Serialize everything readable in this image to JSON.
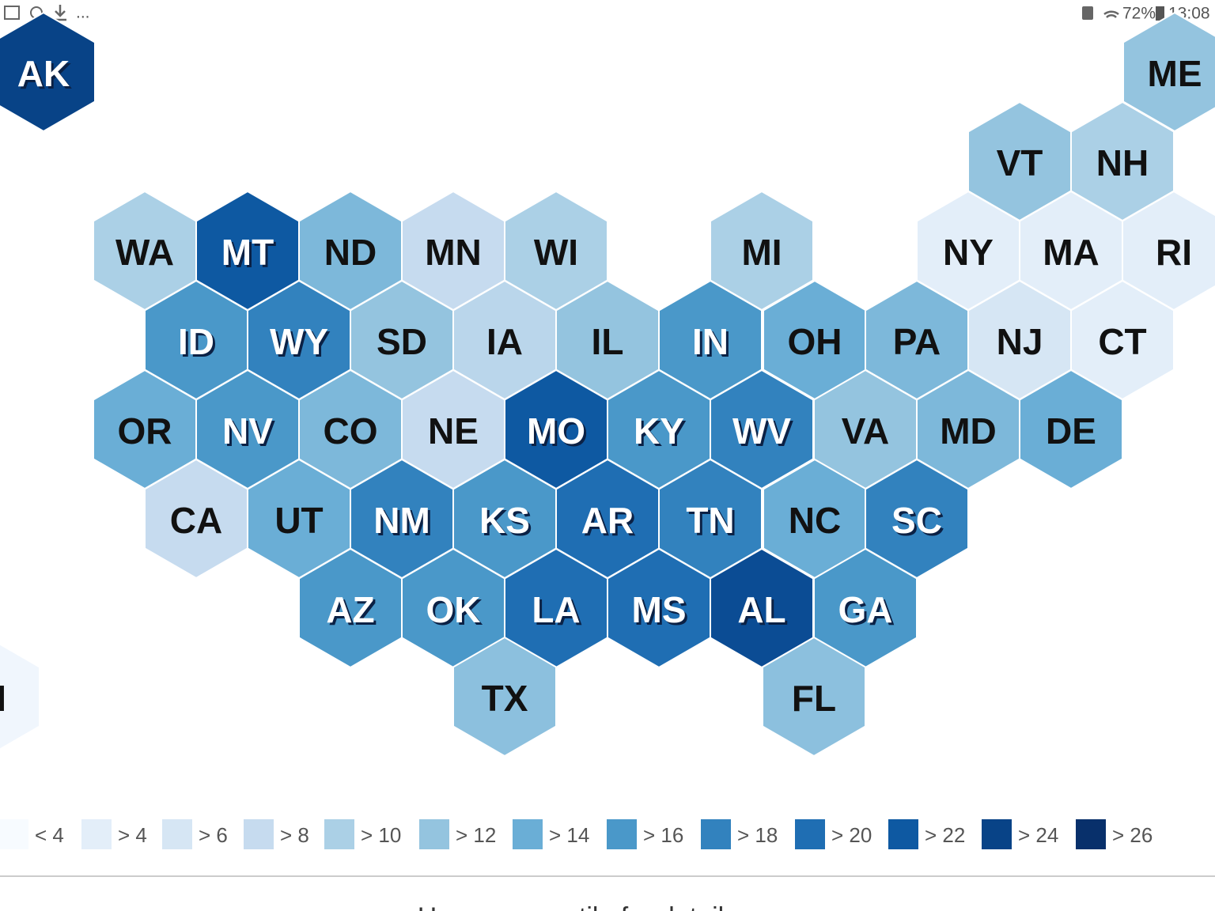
{
  "status_bar": {
    "more": "...",
    "battery": "72%",
    "time": "13:08"
  },
  "states": [
    {
      "label": "AK",
      "color": "#084387"
    },
    {
      "label": "ME",
      "color": "#94c4df"
    },
    {
      "label": "VT",
      "color": "#94c4df"
    },
    {
      "label": "NH",
      "color": "#abd0e6"
    },
    {
      "label": "WA",
      "color": "#abd0e6"
    },
    {
      "label": "MT",
      "color": "#0e59a2"
    },
    {
      "label": "ND",
      "color": "#7db8da"
    },
    {
      "label": "MN",
      "color": "#c6dbef"
    },
    {
      "label": "WI",
      "color": "#abd0e6"
    },
    {
      "label": "MI",
      "color": "#abd0e6"
    },
    {
      "label": "NY",
      "color": "#e3eef9"
    },
    {
      "label": "MA",
      "color": "#e3eef9"
    },
    {
      "label": "RI",
      "color": "#e3eef9"
    },
    {
      "label": "ID",
      "color": "#4a98c9"
    },
    {
      "label": "WY",
      "color": "#3282be"
    },
    {
      "label": "SD",
      "color": "#94c4df"
    },
    {
      "label": "IA",
      "color": "#bad6eb"
    },
    {
      "label": "IL",
      "color": "#94c4df"
    },
    {
      "label": "IN",
      "color": "#4a98c9"
    },
    {
      "label": "OH",
      "color": "#6aaed6"
    },
    {
      "label": "PA",
      "color": "#7db8da"
    },
    {
      "label": "NJ",
      "color": "#d6e6f4"
    },
    {
      "label": "CT",
      "color": "#e3eef9"
    },
    {
      "label": "OR",
      "color": "#6aaed6"
    },
    {
      "label": "NV",
      "color": "#4a98c9"
    },
    {
      "label": "CO",
      "color": "#7db8da"
    },
    {
      "label": "NE",
      "color": "#c6dbef"
    },
    {
      "label": "MO",
      "color": "#0e59a2"
    },
    {
      "label": "KY",
      "color": "#4a98c9"
    },
    {
      "label": "WV",
      "color": "#3282be"
    },
    {
      "label": "VA",
      "color": "#94c4df"
    },
    {
      "label": "MD",
      "color": "#7db8da"
    },
    {
      "label": "DE",
      "color": "#6aaed6"
    },
    {
      "label": "CA",
      "color": "#c6dbef"
    },
    {
      "label": "UT",
      "color": "#6aaed6"
    },
    {
      "label": "NM",
      "color": "#3282be"
    },
    {
      "label": "KS",
      "color": "#4a98c9"
    },
    {
      "label": "AR",
      "color": "#1f6eb3"
    },
    {
      "label": "TN",
      "color": "#3282be"
    },
    {
      "label": "NC",
      "color": "#6aaed6"
    },
    {
      "label": "SC",
      "color": "#3282be"
    },
    {
      "label": "AZ",
      "color": "#4a98c9"
    },
    {
      "label": "OK",
      "color": "#4a98c9"
    },
    {
      "label": "LA",
      "color": "#1f6eb3"
    },
    {
      "label": "MS",
      "color": "#1f6eb3"
    },
    {
      "label": "AL",
      "color": "#0b4c94"
    },
    {
      "label": "GA",
      "color": "#4a98c9"
    },
    {
      "label": "TX",
      "color": "#8cc0de"
    },
    {
      "label": "FL",
      "color": "#8cc0de"
    },
    {
      "label": "HI",
      "color": "#f0f6fd"
    }
  ],
  "legend": [
    {
      "label": "< 4",
      "color": "#f7fbff"
    },
    {
      "label": "> 4",
      "color": "#e3eef9"
    },
    {
      "label": "> 6",
      "color": "#d6e6f4"
    },
    {
      "label": "> 8",
      "color": "#c6dbef"
    },
    {
      "label": "> 10",
      "color": "#abd0e6"
    },
    {
      "label": "> 12",
      "color": "#94c4df"
    },
    {
      "label": "> 14",
      "color": "#6aaed6"
    },
    {
      "label": "> 16",
      "color": "#4a98c9"
    },
    {
      "label": "> 18",
      "color": "#3282be"
    },
    {
      "label": "> 20",
      "color": "#1f6eb3"
    },
    {
      "label": "> 22",
      "color": "#0e59a2"
    },
    {
      "label": "> 24",
      "color": "#084387"
    },
    {
      "label": "> 26",
      "color": "#08306b"
    }
  ],
  "footer": "Hover over a tile for details"
}
